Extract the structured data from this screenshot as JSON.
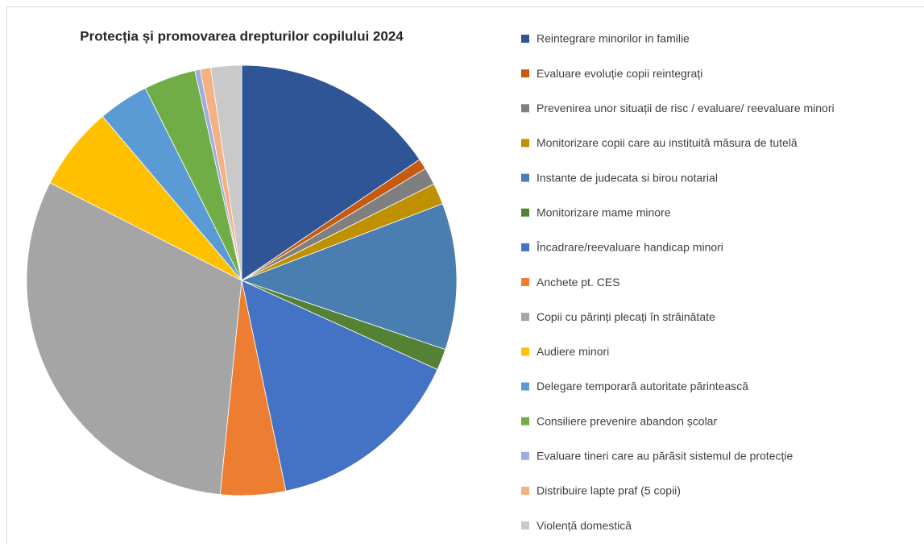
{
  "chart_data": {
    "type": "pie",
    "title": "Protecția și promovarea drepturilor copilului 2024",
    "categories": [
      "Reintegrare minorilor in familie",
      "Evaluare evoluție copii reintegrați",
      "Prevenirea unor situații de risc / evaluare/ reevaluare minori",
      "Monitorizare copii care au instituită măsura de tutelă",
      "Instante de judecata si birou notarial",
      "Monitorizare mame minore",
      "Încadrare/reevaluare handicap minori",
      "Anchete pt. CES",
      "Copii cu părinți plecați în străinătate",
      "Audiere minori",
      "Delegare temporară autoritate părintească",
      "Consiliere prevenire abandon școlar",
      "Evaluare tineri care au părăsit sistemul de protecție",
      "Distribuire lapte praf (5 copii)",
      "Violență domestică"
    ],
    "values": [
      15.5,
      0.8,
      1.3,
      1.6,
      11.0,
      1.6,
      14.9,
      4.9,
      30.9,
      6.3,
      3.8,
      3.9,
      0.4,
      0.8,
      2.3
    ],
    "colors": [
      "#2f5597",
      "#c55a11",
      "#7f7f7f",
      "#bf9000",
      "#4a7eb0",
      "#548235",
      "#4472c4",
      "#ed7d31",
      "#a5a5a5",
      "#ffc000",
      "#5b9bd5",
      "#70ad47",
      "#9dade0",
      "#f4b183",
      "#c9c9c9"
    ],
    "legend": "right"
  }
}
